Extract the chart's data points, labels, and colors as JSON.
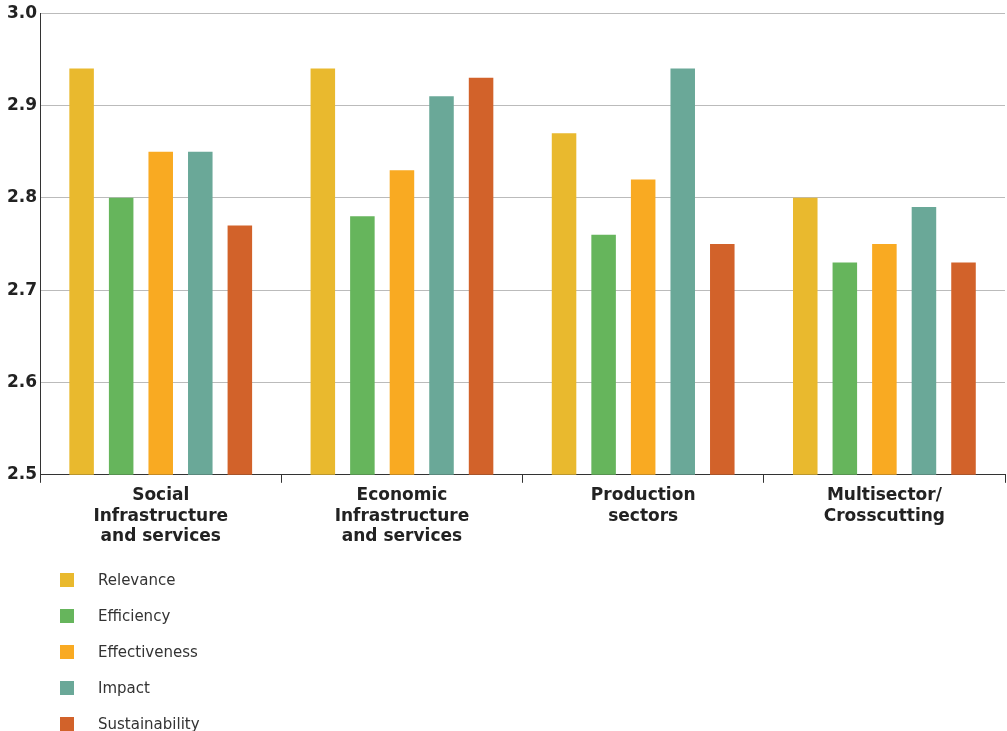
{
  "chart_data": {
    "type": "bar",
    "categories": [
      "Social Infrastructure and services",
      "Economic Infrastructure and services",
      "Production sectors",
      "Multisector/ Crosscutting"
    ],
    "series": [
      {
        "name": "Relevance",
        "color": "#e9b92e",
        "values": [
          2.94,
          2.94,
          2.87,
          2.8
        ]
      },
      {
        "name": "Efficiency",
        "color": "#66b55c",
        "values": [
          2.8,
          2.78,
          2.76,
          2.73
        ]
      },
      {
        "name": "Effectiveness",
        "color": "#f9aa22",
        "values": [
          2.85,
          2.83,
          2.82,
          2.75
        ]
      },
      {
        "name": "Impact",
        "color": "#6aa898",
        "values": [
          2.85,
          2.91,
          2.94,
          2.79
        ]
      },
      {
        "name": "Sustainability",
        "color": "#d2622a",
        "values": [
          2.77,
          2.93,
          2.75,
          2.73
        ]
      }
    ],
    "ylim": [
      2.5,
      3.0
    ],
    "yticks": [
      2.5,
      2.6,
      2.7,
      2.8,
      2.9,
      {
        "value": 3.0,
        "label": "3.0"
      }
    ],
    "grid": "y",
    "legend": "bottom left"
  }
}
